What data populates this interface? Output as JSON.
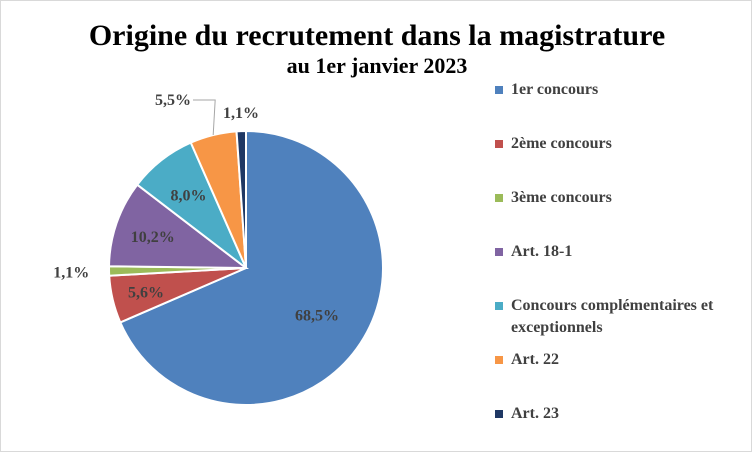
{
  "chart_data": {
    "type": "pie",
    "title": "Origine du recrutement dans la magistrature",
    "subtitle": "au 1er janvier 2023",
    "legend_position": "right",
    "slices": [
      {
        "name": "1er concours",
        "value": 68.5,
        "label": "68,5%",
        "color": "#4f81bd"
      },
      {
        "name": "2ème concours",
        "value": 5.6,
        "label": "5,6%",
        "color": "#c0504d"
      },
      {
        "name": "3ème concours",
        "value": 1.1,
        "label": "1,1%",
        "color": "#9bbb59"
      },
      {
        "name": "Art. 18-1",
        "value": 10.2,
        "label": "10,2%",
        "color": "#8064a2"
      },
      {
        "name": "Concours complémentaires et exceptionnels",
        "value": 8.0,
        "label": "8,0%",
        "color": "#4bacc6"
      },
      {
        "name": "Art. 22",
        "value": 5.5,
        "label": "5,5%",
        "color": "#f79646"
      },
      {
        "name": "Art. 23",
        "value": 1.1,
        "label": "1,1%",
        "color": "#1f3864"
      }
    ]
  }
}
